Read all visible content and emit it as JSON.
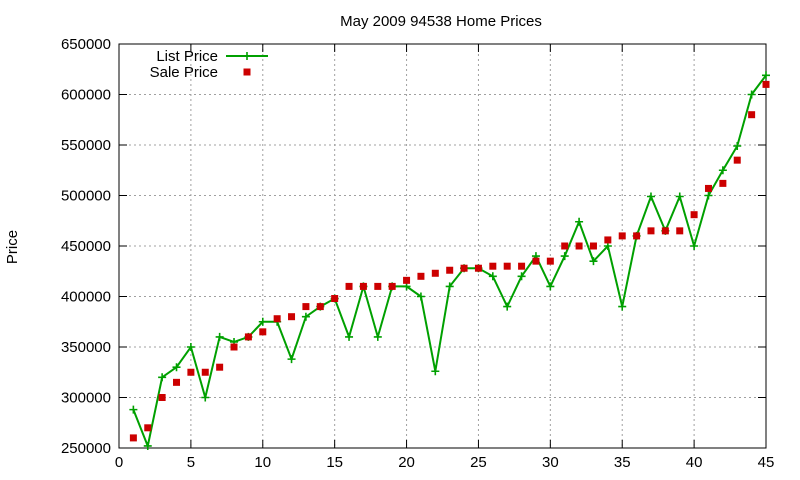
{
  "chart_data": {
    "type": "line",
    "title": "May 2009 94538 Home Prices",
    "xlabel": "",
    "ylabel": "Price",
    "xlim": [
      0,
      45
    ],
    "ylim": [
      250000,
      650000
    ],
    "x_ticks": [
      0,
      5,
      10,
      15,
      20,
      25,
      30,
      35,
      40,
      45
    ],
    "y_ticks": [
      250000,
      300000,
      350000,
      400000,
      450000,
      500000,
      550000,
      600000,
      650000
    ],
    "grid": true,
    "legend_position": "top-left",
    "series": [
      {
        "name": "List Price",
        "style": "line-points",
        "color": "#00a000",
        "x": [
          1,
          2,
          3,
          4,
          5,
          6,
          7,
          8,
          9,
          10,
          11,
          12,
          13,
          14,
          15,
          16,
          17,
          18,
          19,
          20,
          21,
          22,
          23,
          24,
          25,
          26,
          27,
          28,
          29,
          30,
          31,
          32,
          33,
          34,
          35,
          36,
          37,
          38,
          39,
          40,
          41,
          42,
          43,
          44,
          45
        ],
        "values": [
          288000,
          252000,
          320000,
          330000,
          350000,
          300000,
          360000,
          355000,
          360000,
          375000,
          375000,
          338000,
          380000,
          390000,
          398000,
          360000,
          410000,
          360000,
          410000,
          410000,
          400000,
          326000,
          410000,
          428000,
          428000,
          420000,
          390000,
          420000,
          440000,
          410000,
          440000,
          474000,
          435000,
          450000,
          390000,
          460000,
          499000,
          465000,
          499000,
          450000,
          500000,
          525000,
          549000,
          600000,
          619000
        ]
      },
      {
        "name": "Sale Price",
        "style": "points",
        "color": "#cc0000",
        "x": [
          1,
          2,
          3,
          4,
          5,
          6,
          7,
          8,
          9,
          10,
          11,
          12,
          13,
          14,
          15,
          16,
          17,
          18,
          19,
          20,
          21,
          22,
          23,
          24,
          25,
          26,
          27,
          28,
          29,
          30,
          31,
          32,
          33,
          34,
          35,
          36,
          37,
          38,
          39,
          40,
          41,
          42,
          43,
          44,
          45
        ],
        "values": [
          260000,
          270000,
          300000,
          315000,
          325000,
          325000,
          330000,
          350000,
          360000,
          365000,
          378000,
          380000,
          390000,
          390000,
          398000,
          410000,
          410000,
          410000,
          410000,
          416000,
          420000,
          423000,
          426000,
          428000,
          428000,
          430000,
          430000,
          430000,
          435000,
          435000,
          450000,
          450000,
          450000,
          456000,
          460000,
          460000,
          465000,
          465000,
          465000,
          481000,
          507000,
          512000,
          535000,
          580000,
          610000
        ]
      }
    ]
  }
}
